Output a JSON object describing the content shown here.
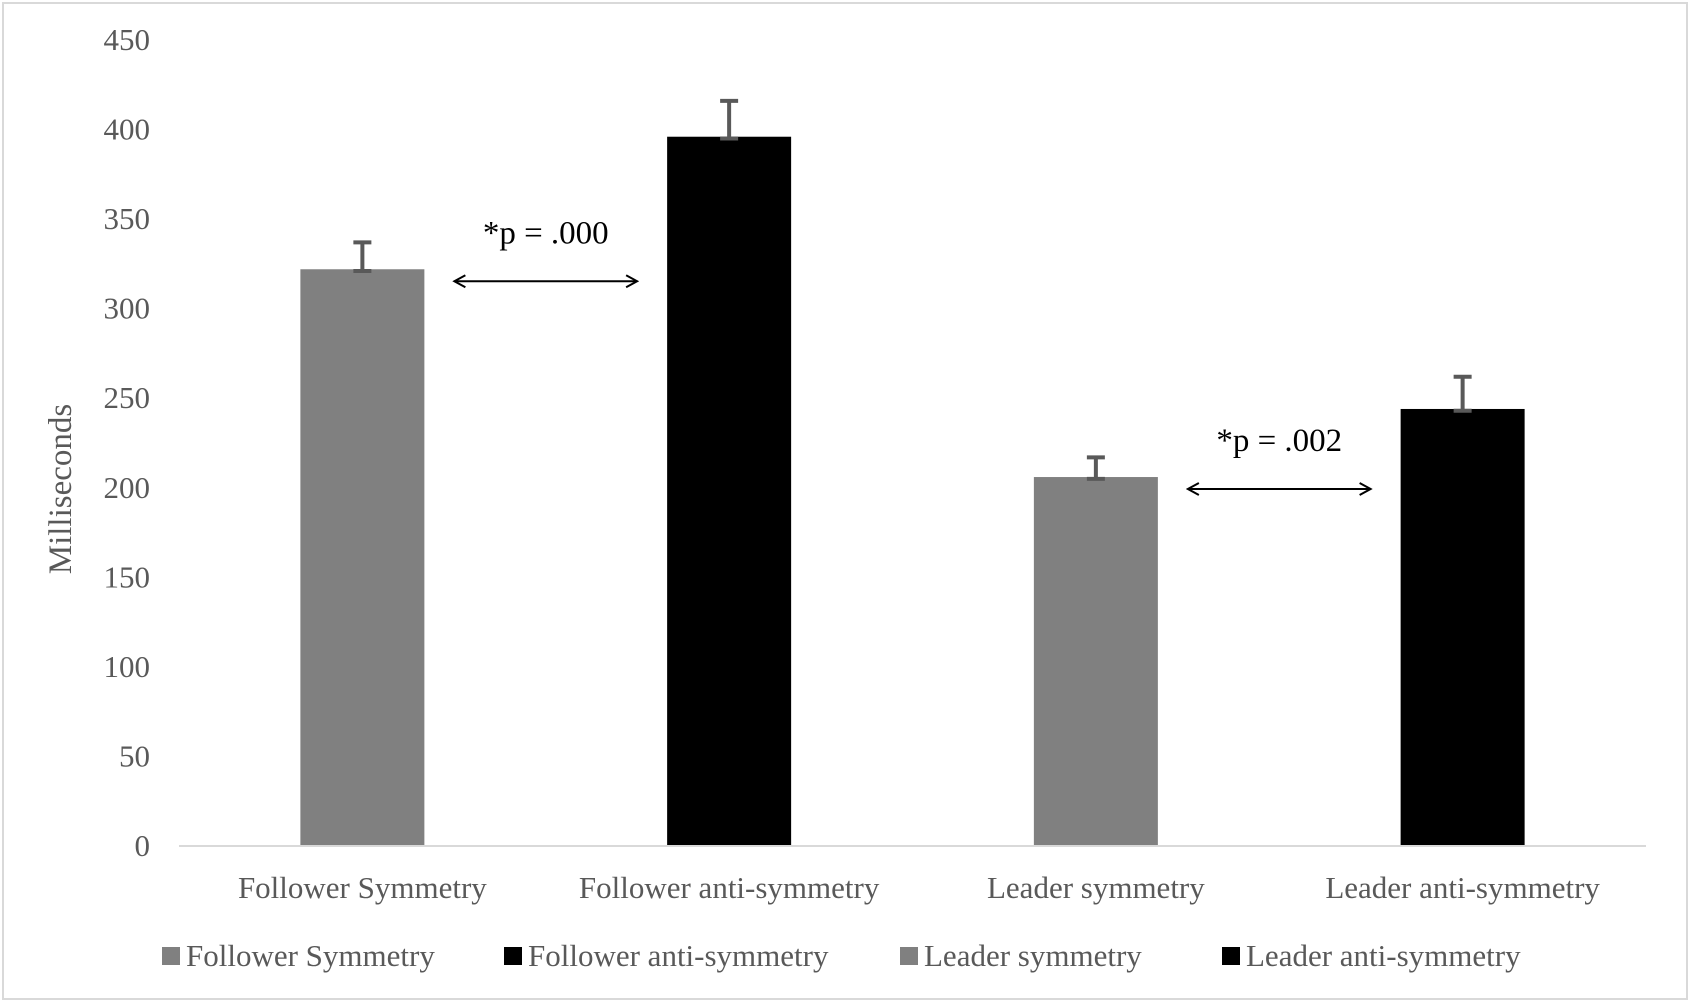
{
  "chart_data": {
    "type": "bar",
    "title": "",
    "xlabel": "",
    "ylabel": "Milliseconds",
    "ylim": [
      0,
      450
    ],
    "yticks": [
      0,
      50,
      100,
      150,
      200,
      250,
      300,
      350,
      400,
      450
    ],
    "grid": false,
    "legend_position": "bottom",
    "categories": [
      "Follower Symmetry",
      "Follower anti-symmetry",
      "Leader symmetry",
      "Leader anti-symmetry"
    ],
    "values": [
      322,
      396,
      206,
      244
    ],
    "error_upper": [
      337,
      416,
      217,
      262
    ],
    "error_lower": [
      321,
      395,
      205,
      243
    ],
    "colors": [
      "#808080",
      "#000000",
      "#808080",
      "#000000"
    ],
    "error_bar_color": "#595959",
    "legend": [
      {
        "label": "Follower Symmetry",
        "color": "#808080"
      },
      {
        "label": "Follower anti-symmetry",
        "color": "#000000"
      },
      {
        "label": "Leader symmetry",
        "color": "#808080"
      },
      {
        "label": "Leader anti-symmetry",
        "color": "#000000"
      }
    ],
    "annotations": [
      {
        "text": "*p = .000",
        "from_category": 0,
        "to_category": 1
      },
      {
        "text": "*p  = .002",
        "from_category": 2,
        "to_category": 3
      }
    ]
  }
}
